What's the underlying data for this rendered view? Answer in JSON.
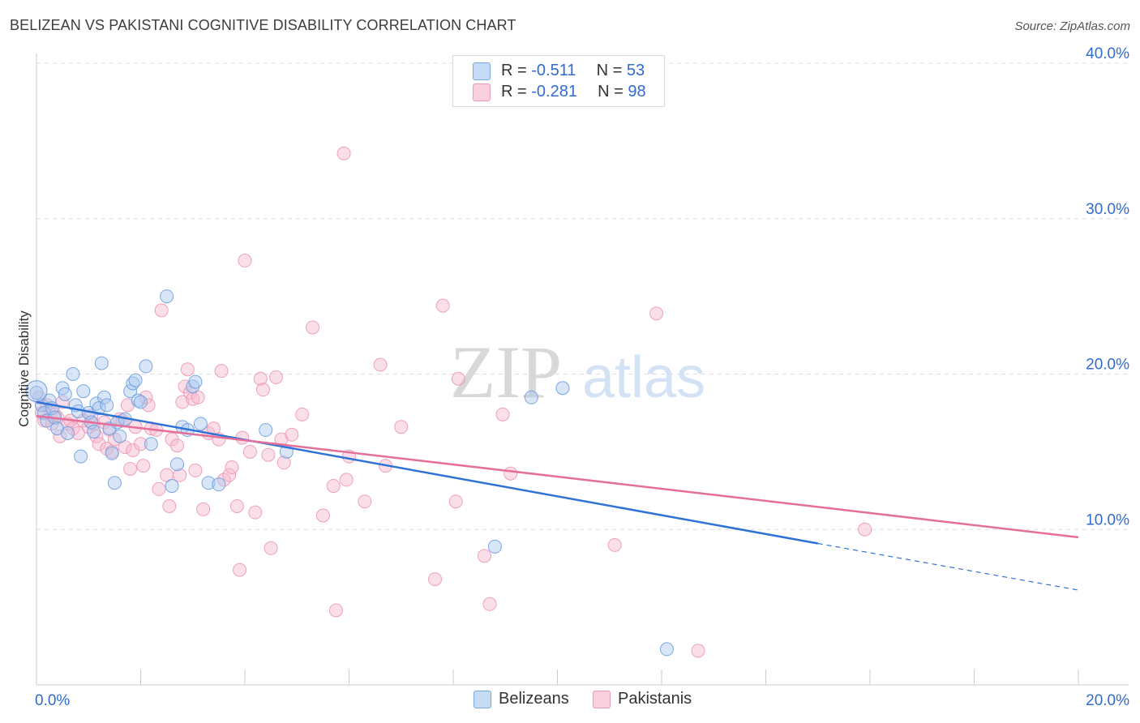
{
  "title": "BELIZEAN VS PAKISTANI COGNITIVE DISABILITY CORRELATION CHART",
  "source": "Source: ZipAtlas.com",
  "watermark": {
    "zip": "ZIP",
    "atlas": "atlas"
  },
  "colors": {
    "blue_fill": "#a8c8f0",
    "blue_line": "#2f72d6",
    "blue_text": "#2f6bd0",
    "pink_fill": "#f6b9cc",
    "pink_line": "#e4709a",
    "grid": "#dcdcdc",
    "axis": "#cccccc"
  },
  "legend_top": [
    {
      "r_label": "R = ",
      "r_value": "-0.511",
      "n_label": "N = ",
      "n_value": "53",
      "color": "blue"
    },
    {
      "r_label": "R = ",
      "r_value": "-0.281",
      "n_label": "N = ",
      "n_value": "98",
      "color": "pink"
    }
  ],
  "legend_bottom": [
    {
      "label": "Belizeans",
      "color": "blue"
    },
    {
      "label": "Pakistanis",
      "color": "pink"
    }
  ],
  "chart_data": {
    "type": "scatter",
    "title": "BELIZEAN VS PAKISTANI COGNITIVE DISABILITY CORRELATION CHART",
    "xlabel": "",
    "ylabel": "Cognitive Disability",
    "xlim": [
      0,
      20
    ],
    "ylim": [
      0,
      40
    ],
    "x_tick_labels": [
      "0.0%",
      "20.0%"
    ],
    "y_ticks": [
      10,
      20,
      30,
      40
    ],
    "y_tick_labels": [
      "10.0%",
      "20.0%",
      "30.0%",
      "40.0%"
    ],
    "grid": true,
    "legend_position": "top-center",
    "series": [
      {
        "name": "Belizeans",
        "color": "blue",
        "r": -0.511,
        "n": 53,
        "trend": {
          "x0": 0.0,
          "y0": 18.2,
          "x1": 15.0,
          "y1": 9.1,
          "dash_to_x": 20.0,
          "dash_to_y": 6.1
        },
        "points": [
          [
            0.0,
            18.8
          ],
          [
            0.1,
            18.0
          ],
          [
            0.15,
            17.5
          ],
          [
            0.2,
            17.0
          ],
          [
            0.25,
            18.3
          ],
          [
            0.3,
            17.8
          ],
          [
            0.35,
            17.2
          ],
          [
            0.4,
            16.5
          ],
          [
            0.5,
            19.1
          ],
          [
            0.55,
            18.7
          ],
          [
            0.6,
            16.2
          ],
          [
            0.7,
            20.0
          ],
          [
            0.75,
            18.0
          ],
          [
            0.8,
            17.6
          ],
          [
            0.85,
            14.7
          ],
          [
            0.9,
            18.9
          ],
          [
            1.0,
            17.5
          ],
          [
            1.05,
            16.9
          ],
          [
            1.1,
            16.3
          ],
          [
            1.15,
            18.1
          ],
          [
            1.2,
            17.8
          ],
          [
            1.25,
            20.7
          ],
          [
            1.3,
            18.5
          ],
          [
            1.35,
            18.0
          ],
          [
            1.4,
            16.5
          ],
          [
            1.45,
            14.9
          ],
          [
            1.5,
            13.0
          ],
          [
            1.55,
            16.9
          ],
          [
            1.6,
            16.0
          ],
          [
            1.7,
            17.1
          ],
          [
            1.8,
            18.9
          ],
          [
            1.85,
            19.4
          ],
          [
            1.9,
            19.6
          ],
          [
            1.95,
            18.3
          ],
          [
            2.0,
            18.2
          ],
          [
            2.1,
            20.5
          ],
          [
            2.2,
            15.5
          ],
          [
            2.5,
            25.0
          ],
          [
            2.6,
            12.8
          ],
          [
            2.7,
            14.2
          ],
          [
            2.8,
            16.6
          ],
          [
            2.9,
            16.4
          ],
          [
            3.0,
            19.2
          ],
          [
            3.05,
            19.5
          ],
          [
            3.15,
            16.8
          ],
          [
            3.3,
            13.0
          ],
          [
            3.5,
            12.9
          ],
          [
            4.4,
            16.4
          ],
          [
            4.8,
            15.0
          ],
          [
            9.5,
            18.5
          ],
          [
            10.1,
            19.1
          ],
          [
            8.8,
            8.9
          ],
          [
            12.1,
            2.3
          ]
        ]
      },
      {
        "name": "Pakistanis",
        "color": "pink",
        "r": -0.281,
        "n": 98,
        "trend": {
          "x0": 0.0,
          "y0": 17.3,
          "x1": 20.0,
          "y1": 9.5
        },
        "points": [
          [
            0.05,
            18.5
          ],
          [
            0.1,
            17.5
          ],
          [
            0.15,
            17.0
          ],
          [
            0.2,
            18.0
          ],
          [
            0.25,
            17.8
          ],
          [
            0.3,
            16.8
          ],
          [
            0.35,
            17.4
          ],
          [
            0.4,
            17.2
          ],
          [
            0.45,
            16.0
          ],
          [
            0.5,
            18.2
          ],
          [
            0.6,
            16.8
          ],
          [
            0.65,
            17.0
          ],
          [
            0.7,
            16.5
          ],
          [
            0.8,
            16.2
          ],
          [
            0.9,
            17.0
          ],
          [
            1.0,
            16.6
          ],
          [
            1.05,
            17.3
          ],
          [
            1.1,
            16.8
          ],
          [
            1.15,
            16.0
          ],
          [
            1.2,
            15.5
          ],
          [
            1.3,
            16.9
          ],
          [
            1.35,
            15.2
          ],
          [
            1.4,
            16.4
          ],
          [
            1.45,
            15.0
          ],
          [
            1.5,
            15.8
          ],
          [
            1.6,
            17.1
          ],
          [
            1.65,
            17.0
          ],
          [
            1.7,
            15.3
          ],
          [
            1.75,
            18.0
          ],
          [
            1.8,
            13.9
          ],
          [
            1.85,
            15.1
          ],
          [
            1.9,
            16.6
          ],
          [
            2.0,
            15.5
          ],
          [
            2.05,
            14.1
          ],
          [
            2.1,
            18.5
          ],
          [
            2.15,
            18.0
          ],
          [
            2.2,
            16.5
          ],
          [
            2.3,
            16.4
          ],
          [
            2.35,
            12.6
          ],
          [
            2.4,
            24.1
          ],
          [
            2.5,
            13.5
          ],
          [
            2.55,
            11.5
          ],
          [
            2.6,
            15.8
          ],
          [
            2.7,
            15.4
          ],
          [
            2.75,
            13.5
          ],
          [
            2.8,
            18.2
          ],
          [
            2.85,
            19.2
          ],
          [
            2.9,
            20.3
          ],
          [
            2.95,
            18.8
          ],
          [
            3.0,
            18.4
          ],
          [
            3.05,
            13.8
          ],
          [
            3.1,
            18.5
          ],
          [
            3.2,
            11.3
          ],
          [
            3.3,
            16.2
          ],
          [
            3.4,
            16.5
          ],
          [
            3.5,
            15.8
          ],
          [
            3.55,
            20.2
          ],
          [
            3.6,
            13.2
          ],
          [
            3.7,
            13.5
          ],
          [
            3.75,
            14.0
          ],
          [
            3.85,
            11.5
          ],
          [
            3.9,
            7.4
          ],
          [
            3.95,
            15.9
          ],
          [
            4.0,
            27.3
          ],
          [
            4.1,
            15.0
          ],
          [
            4.2,
            11.1
          ],
          [
            4.3,
            19.7
          ],
          [
            4.35,
            19.0
          ],
          [
            4.45,
            14.8
          ],
          [
            4.5,
            8.8
          ],
          [
            4.6,
            19.8
          ],
          [
            4.7,
            15.8
          ],
          [
            4.75,
            14.3
          ],
          [
            4.9,
            16.1
          ],
          [
            5.1,
            17.4
          ],
          [
            5.3,
            23.0
          ],
          [
            5.5,
            10.9
          ],
          [
            5.7,
            12.8
          ],
          [
            5.75,
            4.8
          ],
          [
            5.9,
            34.2
          ],
          [
            5.95,
            13.2
          ],
          [
            6.0,
            14.7
          ],
          [
            6.3,
            11.8
          ],
          [
            6.6,
            20.6
          ],
          [
            6.7,
            14.1
          ],
          [
            7.0,
            16.6
          ],
          [
            7.8,
            24.4
          ],
          [
            7.65,
            6.8
          ],
          [
            8.05,
            11.8
          ],
          [
            8.1,
            19.7
          ],
          [
            8.6,
            8.3
          ],
          [
            8.7,
            5.2
          ],
          [
            8.95,
            17.4
          ],
          [
            9.1,
            13.6
          ],
          [
            11.1,
            9.0
          ],
          [
            11.9,
            23.9
          ],
          [
            12.7,
            2.2
          ],
          [
            15.9,
            10.0
          ]
        ]
      }
    ]
  }
}
